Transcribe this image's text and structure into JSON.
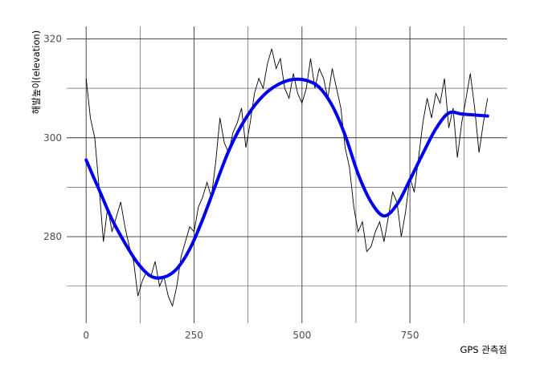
{
  "chart_data": {
    "type": "line",
    "title": "",
    "xlabel": "GPS 관측점",
    "ylabel": "해발높이(elevation)",
    "xlim": [
      -45,
      975
    ],
    "ylim": [
      262.5,
      322.5
    ],
    "x_ticks": [
      0,
      250,
      500,
      750
    ],
    "x_tick_labels": [
      "0",
      "250",
      "500",
      "750"
    ],
    "x_minor_ticks": [
      125,
      375,
      625,
      875
    ],
    "y_ticks": [
      280,
      300,
      320
    ],
    "y_tick_labels": [
      "280",
      "300",
      "320"
    ],
    "y_minor_ticks": [
      270,
      290,
      310
    ],
    "grid": true,
    "legend": "none",
    "series": [
      {
        "kind": "raw",
        "color": "#000000",
        "x": [
          0,
          10,
          20,
          30,
          40,
          50,
          60,
          70,
          80,
          90,
          100,
          110,
          120,
          130,
          140,
          150,
          160,
          170,
          180,
          190,
          200,
          210,
          220,
          230,
          240,
          250,
          260,
          270,
          280,
          290,
          300,
          310,
          320,
          330,
          340,
          350,
          360,
          370,
          380,
          390,
          400,
          410,
          420,
          430,
          440,
          450,
          460,
          470,
          480,
          490,
          500,
          510,
          520,
          530,
          540,
          550,
          560,
          570,
          580,
          590,
          600,
          610,
          620,
          630,
          640,
          650,
          660,
          670,
          680,
          690,
          700,
          710,
          720,
          730,
          740,
          750,
          760,
          770,
          780,
          790,
          800,
          810,
          820,
          830,
          840,
          850,
          860,
          870,
          880,
          890,
          900,
          910,
          920,
          930
        ],
        "y": [
          312,
          304,
          300,
          290,
          279,
          286,
          281,
          284,
          287,
          282,
          278,
          275,
          268,
          271,
          273,
          272,
          275,
          270,
          272,
          268,
          266,
          270,
          276,
          279,
          282,
          281,
          286,
          288,
          291,
          288,
          295,
          304,
          299,
          297,
          301,
          303,
          306,
          298,
          303,
          309,
          312,
          310,
          315,
          318,
          314,
          316,
          310,
          308,
          313,
          309,
          307,
          310,
          316,
          310,
          314,
          312,
          308,
          314,
          310,
          306,
          298,
          294,
          286,
          281,
          283,
          277,
          278,
          281,
          283,
          279,
          284,
          289,
          287,
          280,
          285,
          292,
          289,
          296,
          303,
          308,
          304,
          309,
          307,
          312,
          302,
          306,
          296,
          303,
          308,
          313,
          306,
          297,
          303,
          308
        ]
      },
      {
        "kind": "smooth",
        "color": "#0000ee",
        "x": [
          0,
          30,
          60,
          90,
          120,
          150,
          180,
          210,
          240,
          270,
          300,
          330,
          360,
          390,
          420,
          450,
          480,
          510,
          540,
          570,
          600,
          630,
          660,
          690,
          720,
          750,
          780,
          810,
          840,
          870,
          900,
          930
        ],
        "y": [
          295.5,
          289.5,
          283.5,
          278.7,
          274.6,
          272.0,
          271.8,
          273.5,
          277.5,
          283.5,
          290.5,
          297.3,
          302.5,
          306.5,
          309.3,
          311.0,
          311.8,
          311.6,
          310.2,
          306.5,
          300.5,
          292.7,
          287.0,
          284.2,
          286.5,
          291.5,
          296.8,
          301.8,
          305.0,
          304.8,
          304.6,
          304.4
        ]
      }
    ]
  }
}
